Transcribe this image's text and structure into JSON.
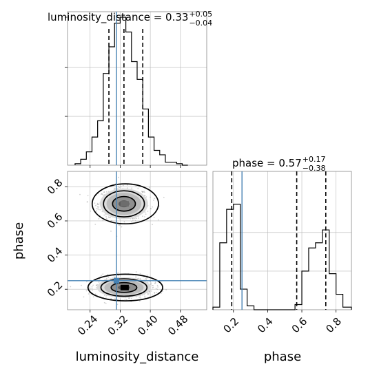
{
  "figure": {
    "type": "corner-plot",
    "grid": true,
    "truth_color": "#4682b4",
    "hist_color": "#000000",
    "scatter_color": "#9a9a9a"
  },
  "chart_data": [
    {
      "panel": "marginal-luminosity-distance",
      "type": "bar",
      "title_main": "luminosity_distance = 0.33",
      "title_sup": "+0.05",
      "title_sub": "−0.04",
      "xlim": [
        0.18,
        0.55
      ],
      "ylim": [
        0,
        1.0
      ],
      "histtype": "step",
      "bin_edges": [
        0.2,
        0.215,
        0.23,
        0.245,
        0.26,
        0.275,
        0.29,
        0.305,
        0.32,
        0.335,
        0.35,
        0.365,
        0.38,
        0.395,
        0.41,
        0.425,
        0.44,
        0.455,
        0.47,
        0.485,
        0.5
      ],
      "values": [
        0.01,
        0.04,
        0.09,
        0.19,
        0.3,
        0.62,
        0.8,
        0.96,
        1.0,
        0.9,
        0.7,
        0.58,
        0.38,
        0.19,
        0.1,
        0.07,
        0.02,
        0.02,
        0.01,
        0.0
      ],
      "quantiles": [
        0.29,
        0.33,
        0.38
      ],
      "truth": 0.31,
      "xticks": [
        0.24,
        0.32,
        0.4,
        0.48
      ]
    },
    {
      "panel": "joint-luminosity-distance-phase",
      "type": "scatter",
      "xlabel": "luminosity_distance",
      "ylabel": "phase",
      "xlim": [
        0.18,
        0.55
      ],
      "ylim": [
        0.08,
        0.89
      ],
      "xticks": [
        0.24,
        0.32,
        0.4,
        0.48
      ],
      "xtick_labels": [
        "0.24",
        "0.32",
        "0.40",
        "0.48"
      ],
      "yticks": [
        0.2,
        0.4,
        0.6,
        0.8
      ],
      "ytick_labels": [
        "0.2",
        "0.4",
        "0.6",
        "0.8"
      ],
      "truth": [
        0.31,
        0.25
      ],
      "modes": [
        {
          "x": 0.33,
          "y": 0.7,
          "sx": 0.032,
          "sy": 0.045
        },
        {
          "x": 0.33,
          "y": 0.21,
          "sx": 0.036,
          "sy": 0.03
        }
      ],
      "contour_levels": [
        0.39,
        0.86,
        0.99
      ]
    },
    {
      "panel": "marginal-phase",
      "type": "bar",
      "title_main": "phase = 0.57",
      "title_sup": "+0.17",
      "title_sub": "−0.38",
      "xlabel": "phase",
      "xlim": [
        0.08,
        0.89
      ],
      "ylim": [
        0,
        1.0
      ],
      "histtype": "step",
      "bin_edges": [
        0.08,
        0.12,
        0.16,
        0.2,
        0.24,
        0.28,
        0.32,
        0.36,
        0.4,
        0.44,
        0.48,
        0.52,
        0.56,
        0.6,
        0.64,
        0.68,
        0.72,
        0.76,
        0.8,
        0.84,
        0.89
      ],
      "values": [
        0.02,
        0.52,
        0.78,
        0.82,
        0.16,
        0.03,
        0.0,
        0.0,
        0.0,
        0.0,
        0.0,
        0.0,
        0.04,
        0.3,
        0.48,
        0.52,
        0.62,
        0.28,
        0.12,
        0.02
      ],
      "quantiles": [
        0.19,
        0.57,
        0.74
      ],
      "truth": 0.25,
      "xticks": [
        0.2,
        0.4,
        0.6,
        0.8
      ],
      "xtick_labels": [
        "0.2",
        "0.4",
        "0.6",
        "0.8"
      ]
    }
  ]
}
